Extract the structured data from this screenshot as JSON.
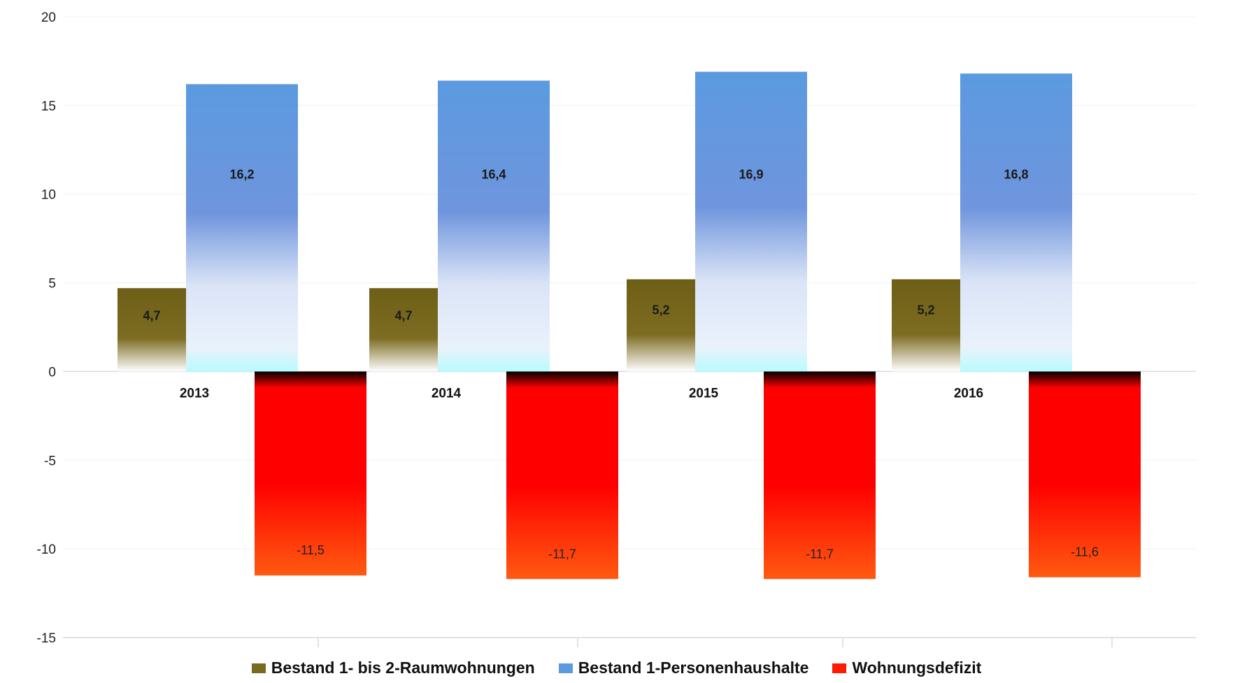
{
  "chart_data": {
    "type": "bar",
    "categories": [
      "2013",
      "2014",
      "2015",
      "2016"
    ],
    "series": [
      {
        "name": "Bestand 1- bis 2-Raumwohnungen",
        "color": "#7a6a1f",
        "values": [
          4.7,
          4.7,
          5.2,
          5.2
        ],
        "labels": [
          "4,7",
          "4,7",
          "5,2",
          "5,2"
        ]
      },
      {
        "name": "Bestand 1-Personenhaushalte",
        "color": "#5b9ae0",
        "values": [
          16.2,
          16.4,
          16.9,
          16.8
        ],
        "labels": [
          "16,2",
          "16,4",
          "16,9",
          "16,8"
        ]
      },
      {
        "name": "Wohnungsdefizit",
        "color": "#ff1a00",
        "values": [
          -11.5,
          -11.7,
          -11.7,
          -11.6
        ],
        "labels": [
          "-11,5",
          "-11,7",
          "-11,7",
          "-11,6"
        ]
      }
    ],
    "ylim": [
      -15,
      20
    ],
    "yticks": [
      20,
      15,
      10,
      5,
      0,
      -5,
      -10,
      -15
    ],
    "grid": true,
    "legend": "bottom"
  }
}
